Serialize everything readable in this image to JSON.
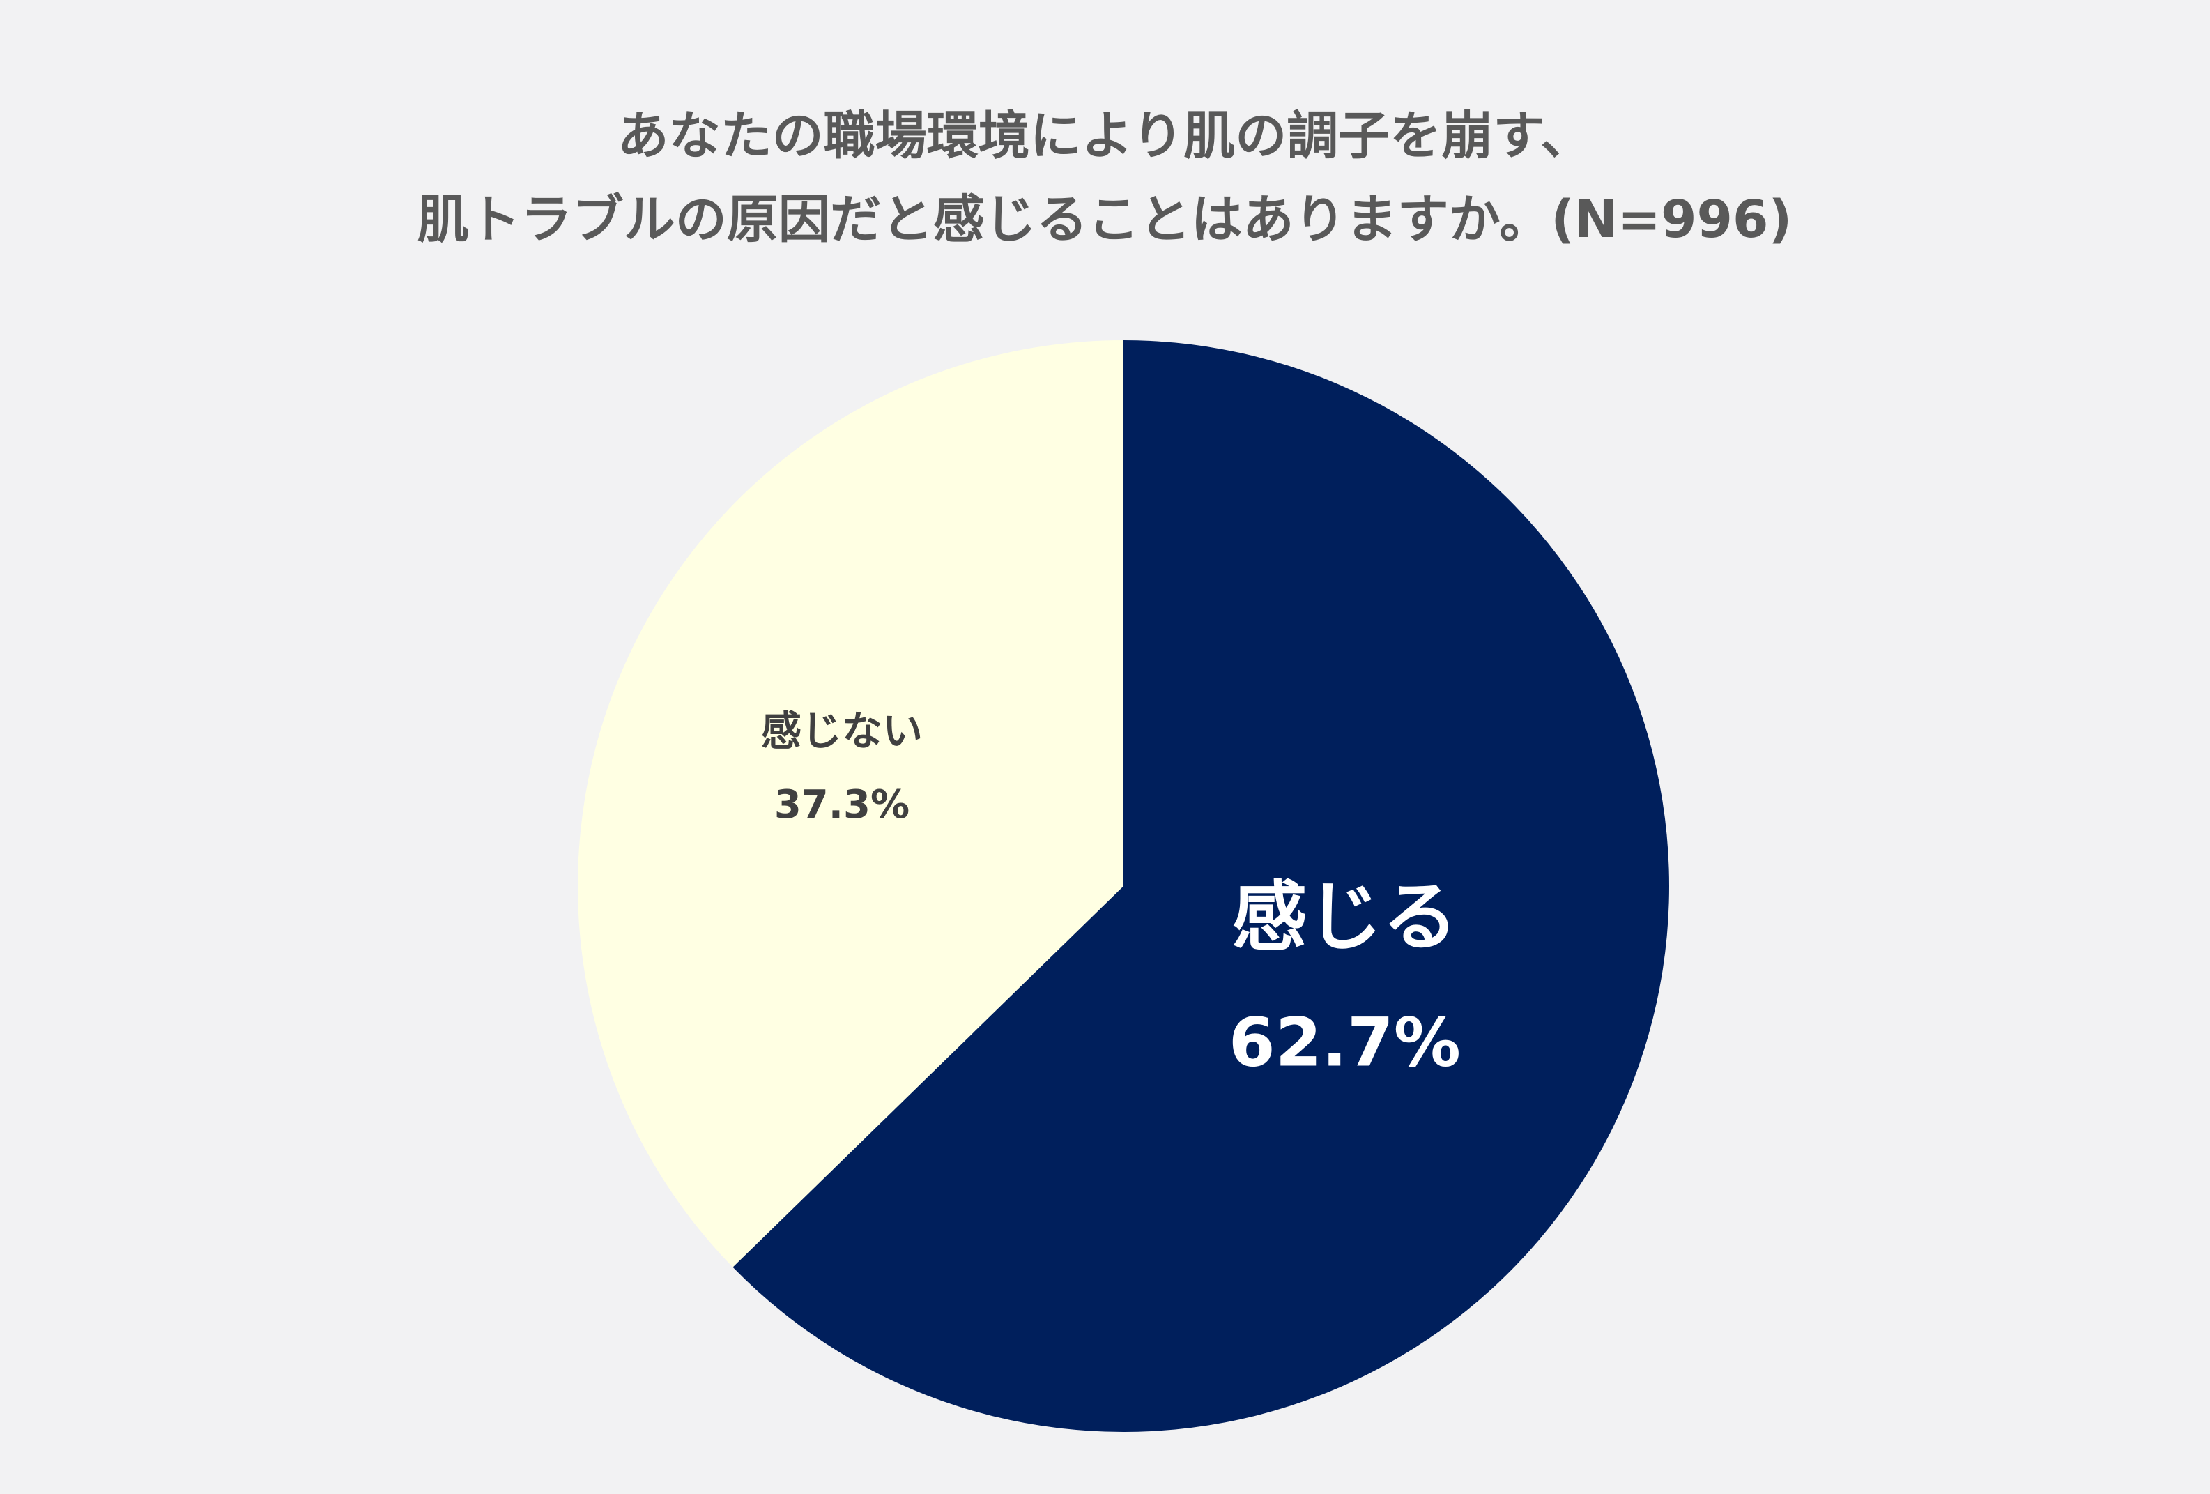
{
  "chart_data": {
    "type": "pie",
    "title_lines": [
      "あなたの職場環境により肌の調子を崩す、",
      "肌トラブルの原因だと感じることはありますか。(N=996)"
    ],
    "slices": [
      {
        "label": "感じる",
        "value": 62.7,
        "value_label": "62.7%",
        "color": "#001f5c",
        "text_color": "#ffffff"
      },
      {
        "label": "感じない",
        "value": 37.3,
        "value_label": "37.3%",
        "color": "#ffffe3",
        "text_color": "#404040"
      }
    ],
    "start_angle": "12 o'clock",
    "direction": "clockwise",
    "legend": "none"
  },
  "colors": {
    "background": "#f2f2f3",
    "title": "#595959"
  }
}
